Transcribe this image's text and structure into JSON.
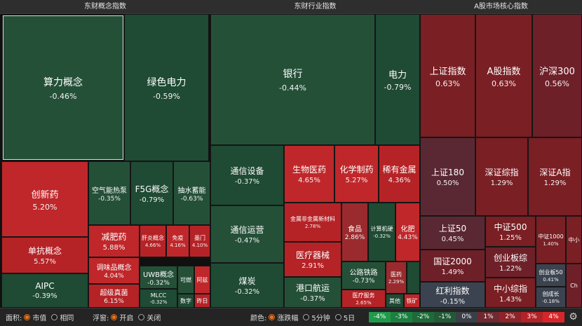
{
  "panels": {
    "concept": {
      "title": "东财概念指数"
    },
    "industry": {
      "title": "东财行业指数"
    },
    "core": {
      "title": "A股市场核心指数"
    }
  },
  "tiles": {
    "suanli": {
      "name": "算力概念",
      "value": "-0.46%"
    },
    "lvse": {
      "name": "绿色电力",
      "value": "-0.59%"
    },
    "chuangxin": {
      "name": "创新药",
      "value": "5.20%"
    },
    "kongqi": {
      "name": "空气能热泵",
      "value": "-0.35%"
    },
    "f5g": {
      "name": "F5G概念",
      "value": "-0.79%"
    },
    "choushui": {
      "name": "抽水蓄能",
      "value": "-0.63%"
    },
    "dankang": {
      "name": "单抗概念",
      "value": "5.57%"
    },
    "jianfei": {
      "name": "减肥药",
      "value": "5.88%"
    },
    "ganyan": {
      "name": "肝炎概念",
      "value": "4.66%"
    },
    "mianyi": {
      "name": "免疫",
      "value": "4.16%"
    },
    "mengmen": {
      "name": "墨门",
      "value": "4.10%"
    },
    "tiaowei": {
      "name": "调味品概念",
      "value": "4.04%"
    },
    "aipc": {
      "name": "AIPC",
      "value": "-0.39%"
    },
    "chaoji": {
      "name": "超级真菌",
      "value": "6.15%"
    },
    "uwb": {
      "name": "UWB概念",
      "value": "-0.32%"
    },
    "mlcc": {
      "name": "MLCC",
      "value": "-0.32%"
    },
    "keran": {
      "name": "可燃"
    },
    "azheng": {
      "name": "阿兹"
    },
    "shuzi": {
      "name": "数字"
    },
    "zuori": {
      "name": "昨日"
    },
    "yinhang": {
      "name": "银行",
      "value": "-0.44%"
    },
    "dianli": {
      "name": "电力",
      "value": "-0.79%"
    },
    "txsb": {
      "name": "通信设备",
      "value": "-0.37%"
    },
    "swyy": {
      "name": "生物医药",
      "value": "4.65%"
    },
    "hxzy": {
      "name": "化学制药",
      "value": "5.27%"
    },
    "xyjs": {
      "name": "稀有金属",
      "value": "4.36%"
    },
    "jsfjs": {
      "name": "金属非金属新材料",
      "value": "2.78%"
    },
    "txyy": {
      "name": "通信运营",
      "value": "-0.47%"
    },
    "shipin": {
      "name": "食品",
      "value": "2.86%"
    },
    "jsjyj": {
      "name": "计算机硬",
      "value": "-0.32%"
    },
    "huafei": {
      "name": "化肥",
      "value": "4.43%"
    },
    "ylqx": {
      "name": "医疗器械",
      "value": "2.91%"
    },
    "meitan": {
      "name": "煤炭",
      "value": "-0.32%"
    },
    "gltl": {
      "name": "公路铁路",
      "value": "-0.73%"
    },
    "yiyao": {
      "name": "医药",
      "value": "2.29%"
    },
    "gkhy": {
      "name": "港口航运",
      "value": "-0.37%"
    },
    "ylfw": {
      "name": "医疗服务",
      "value": "2.65%"
    },
    "qita": {
      "name": "其他"
    },
    "tiekuang": {
      "name": "铁矿"
    },
    "szzs": {
      "name": "上证指数",
      "value": "0.63%"
    },
    "agzs": {
      "name": "A股指数",
      "value": "0.63%"
    },
    "hs300": {
      "name": "沪深300",
      "value": "0.56%"
    },
    "sz180": {
      "name": "上证180",
      "value": "0.50%"
    },
    "szzz": {
      "name": "深证综指",
      "value": "1.29%"
    },
    "szag": {
      "name": "深证A指",
      "value": "1.29%"
    },
    "sz50": {
      "name": "上证50",
      "value": "0.45%"
    },
    "zz500": {
      "name": "中证500",
      "value": "1.25%"
    },
    "zz1000": {
      "name": "中证1000",
      "value": "1.40%"
    },
    "zhongxiao": {
      "name": "中小"
    },
    "gz2000": {
      "name": "国证2000",
      "value": "1.49%"
    },
    "cybz": {
      "name": "创业板综",
      "value": "1.22%"
    },
    "hlzs": {
      "name": "红利指数",
      "value": "-0.15%"
    },
    "zxzz": {
      "name": "中小综指",
      "value": "1.43%"
    },
    "cyb50": {
      "name": "创业板50",
      "value": "0.41%"
    },
    "cck": {
      "name": "创成长",
      "value": "-0.18%"
    },
    "ch": {
      "name": "Ch"
    }
  },
  "bottom": {
    "area_label": "面积:",
    "area_opt1": "市值",
    "area_opt2": "相同",
    "float_label": "浮窗:",
    "float_opt1": "开启",
    "float_opt2": "关闭",
    "color_label": "颜色:",
    "color_opt1": "涨跌幅",
    "color_opt2": "5分钟",
    "color_opt3": "5日",
    "scale": [
      "-4%",
      "-3%",
      "-2%",
      "-1%",
      "0%",
      "1%",
      "2%",
      "3%",
      "4%"
    ],
    "scale_colors": [
      "#1f9a4a",
      "#1c7f3f",
      "#1e6a38",
      "#225a37",
      "#3a3f48",
      "#6e2a30",
      "#8e2328",
      "#b32226",
      "#d6262a"
    ]
  }
}
